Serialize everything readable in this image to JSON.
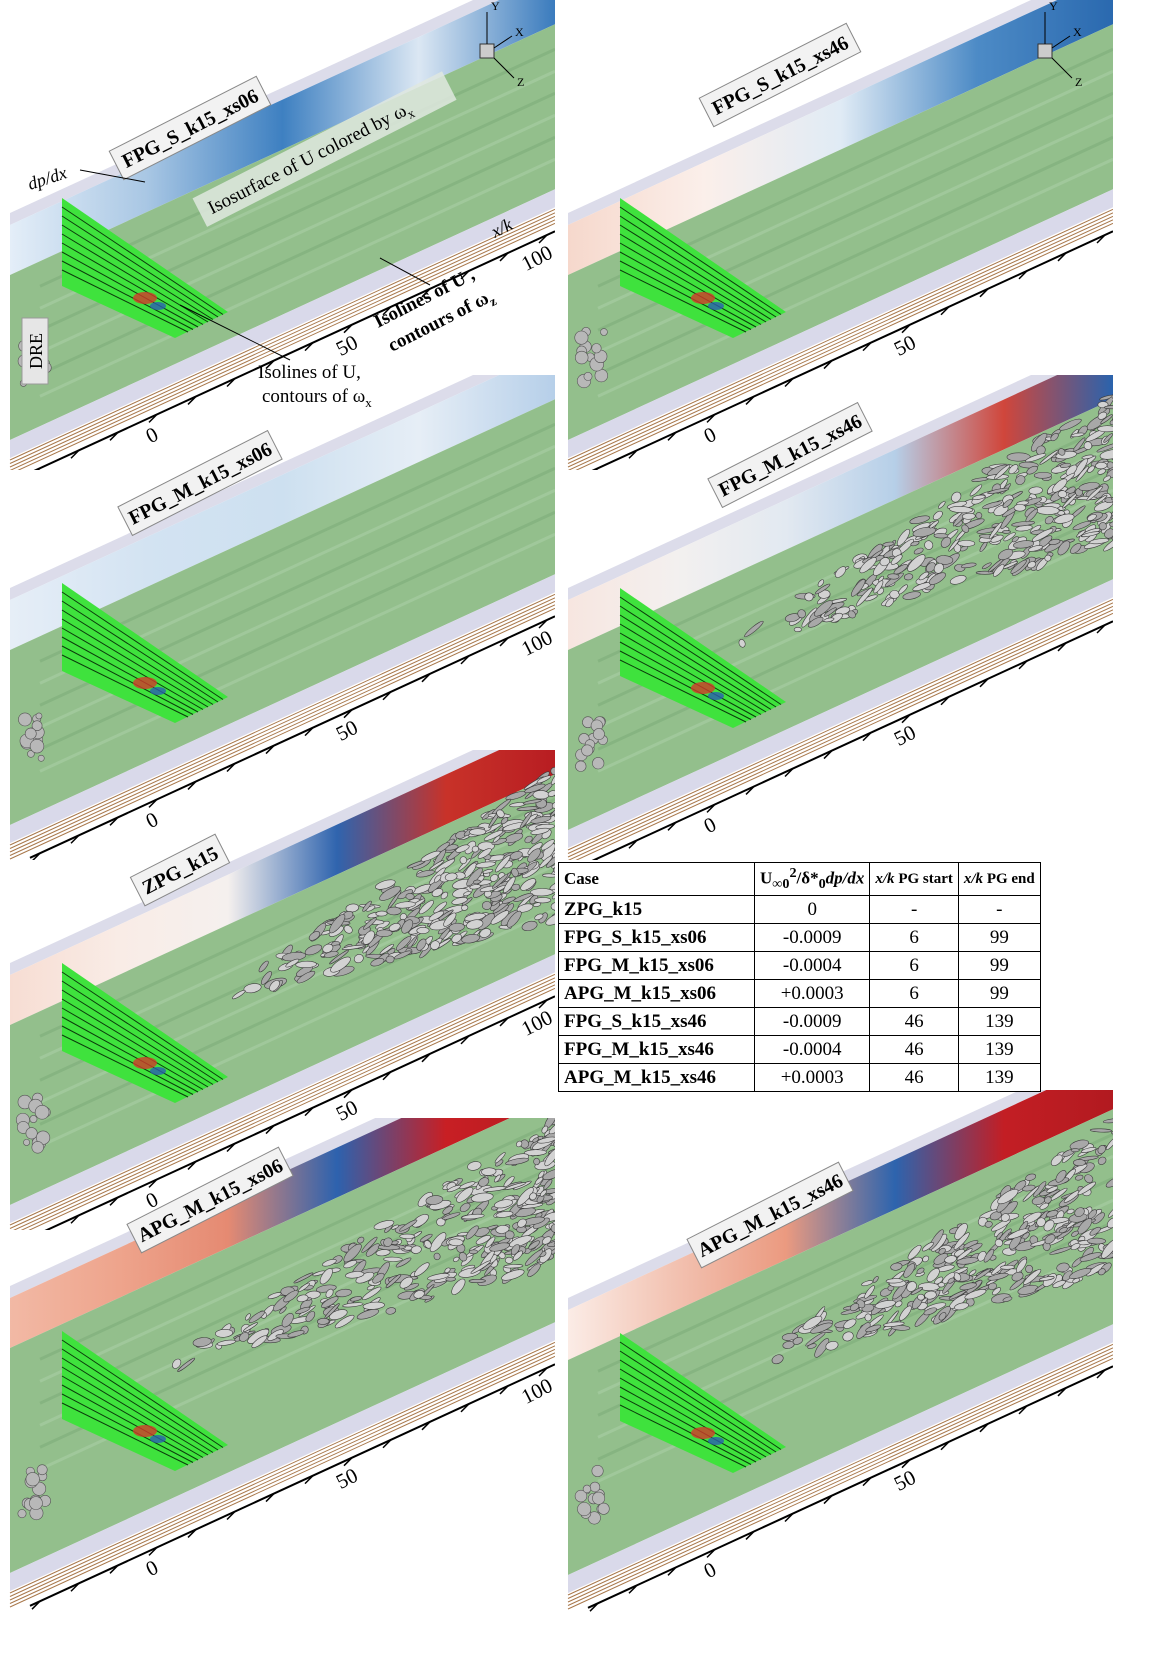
{
  "panels": [
    {
      "label": "FPG_S_k15_xs06",
      "ticks": [
        "0",
        "50",
        "100"
      ]
    },
    {
      "label": "FPG_S_k15_xs46",
      "ticks": [
        "0",
        "50"
      ]
    },
    {
      "label": "FPG_M_k15_xs06",
      "ticks": [
        "0",
        "50",
        "100"
      ]
    },
    {
      "label": "FPG_M_k15_xs46",
      "ticks": [
        "0",
        "50"
      ]
    },
    {
      "label": "ZPG_k15",
      "ticks": [
        "0",
        "50",
        "100"
      ]
    },
    {
      "label": "APG_M_k15_xs06",
      "ticks": [
        "0",
        "50",
        "100"
      ]
    },
    {
      "label": "APG_M_k15_xs46",
      "ticks": [
        "0",
        "50"
      ]
    }
  ],
  "triad": [
    "Y",
    "X",
    "Z"
  ],
  "annotations": {
    "dpdx": "dp/dx",
    "isosurface": {
      "text": "Isosurface of U colored by ω",
      "sub": "x"
    },
    "xk": "x/k",
    "isolines_z": {
      "line1": "Isolines of U ,",
      "line2": "contours of ω",
      "sub": "z"
    },
    "isolines_x": {
      "line1": "Isolines of U,",
      "line2": "contours of ω",
      "sub": "x"
    },
    "dre": "DRE"
  },
  "table": {
    "header": {
      "case": "Case",
      "gradient": [
        "U",
        "∞0",
        "2",
        "/δ*",
        "0",
        "dp/dx"
      ],
      "start": [
        "x/k",
        " PG start"
      ],
      "end": [
        "x/k",
        " PG end"
      ]
    },
    "rows": [
      [
        "ZPG_k15",
        "0",
        "-",
        "-"
      ],
      [
        "FPG_S_k15_xs06",
        "-0.0009",
        "6",
        "99"
      ],
      [
        "FPG_M_k15_xs06",
        "-0.0004",
        "6",
        "99"
      ],
      [
        "APG_M_k15_xs06",
        "+0.0003",
        "6",
        "99"
      ],
      [
        "FPG_S_k15_xs46",
        "-0.0009",
        "46",
        "139"
      ],
      [
        "FPG_M_k15_xs46",
        "-0.0004",
        "46",
        "139"
      ],
      [
        "APG_M_k15_xs46",
        "+0.0003",
        "46",
        "139"
      ]
    ]
  }
}
